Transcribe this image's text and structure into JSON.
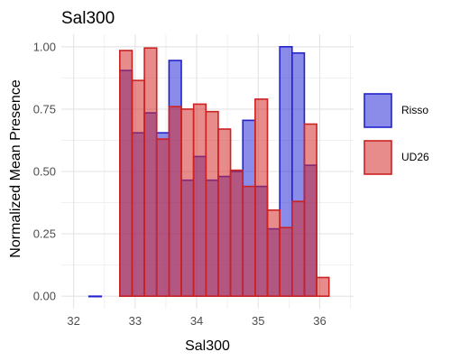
{
  "chart_data": {
    "type": "bar",
    "title": "Sal300",
    "xlabel": "Sal300",
    "ylabel": "Normalized Mean Presence",
    "xlim": [
      31.8,
      36.55
    ],
    "ylim": [
      -0.05,
      1.05
    ],
    "x_ticks": [
      32,
      33,
      34,
      35,
      36
    ],
    "y_ticks": [
      0.0,
      0.25,
      0.5,
      0.75,
      1.0
    ],
    "x_tick_labels": [
      "32",
      "33",
      "34",
      "35",
      "36"
    ],
    "y_tick_labels": [
      "0.00",
      "0.25",
      "0.50",
      "0.75",
      "1.00"
    ],
    "bin_width": 0.2,
    "grid": true,
    "legend_position": "right",
    "series": [
      {
        "name": "Risso",
        "fill": "#2b2bd9",
        "stroke": "#2222cc",
        "bins": [
          {
            "x": 32.35,
            "y": 0.0
          },
          {
            "x": 32.85,
            "y": 0.905
          },
          {
            "x": 33.05,
            "y": 0.655
          },
          {
            "x": 33.25,
            "y": 0.735
          },
          {
            "x": 33.45,
            "y": 0.655
          },
          {
            "x": 33.65,
            "y": 0.945
          },
          {
            "x": 33.85,
            "y": 0.465
          },
          {
            "x": 34.05,
            "y": 0.56
          },
          {
            "x": 34.25,
            "y": 0.465
          },
          {
            "x": 34.45,
            "y": 0.48
          },
          {
            "x": 34.65,
            "y": 0.5
          },
          {
            "x": 34.85,
            "y": 0.705
          },
          {
            "x": 35.05,
            "y": 0.44
          },
          {
            "x": 35.25,
            "y": 0.27
          },
          {
            "x": 35.45,
            "y": 1.0
          },
          {
            "x": 35.65,
            "y": 0.975
          },
          {
            "x": 35.85,
            "y": 0.525
          }
        ]
      },
      {
        "name": "UD26",
        "fill": "#d42b2b",
        "stroke": "#cc2222",
        "bins": [
          {
            "x": 32.85,
            "y": 0.985
          },
          {
            "x": 33.05,
            "y": 0.865
          },
          {
            "x": 33.25,
            "y": 0.995
          },
          {
            "x": 33.45,
            "y": 0.63
          },
          {
            "x": 33.65,
            "y": 0.76
          },
          {
            "x": 33.85,
            "y": 0.75
          },
          {
            "x": 34.05,
            "y": 0.77
          },
          {
            "x": 34.25,
            "y": 0.74
          },
          {
            "x": 34.45,
            "y": 0.67
          },
          {
            "x": 34.65,
            "y": 0.505
          },
          {
            "x": 34.85,
            "y": 0.44
          },
          {
            "x": 35.05,
            "y": 0.79
          },
          {
            "x": 35.25,
            "y": 0.345
          },
          {
            "x": 35.45,
            "y": 0.275
          },
          {
            "x": 35.65,
            "y": 0.38
          },
          {
            "x": 35.85,
            "y": 0.69
          },
          {
            "x": 36.05,
            "y": 0.075
          }
        ]
      }
    ]
  }
}
